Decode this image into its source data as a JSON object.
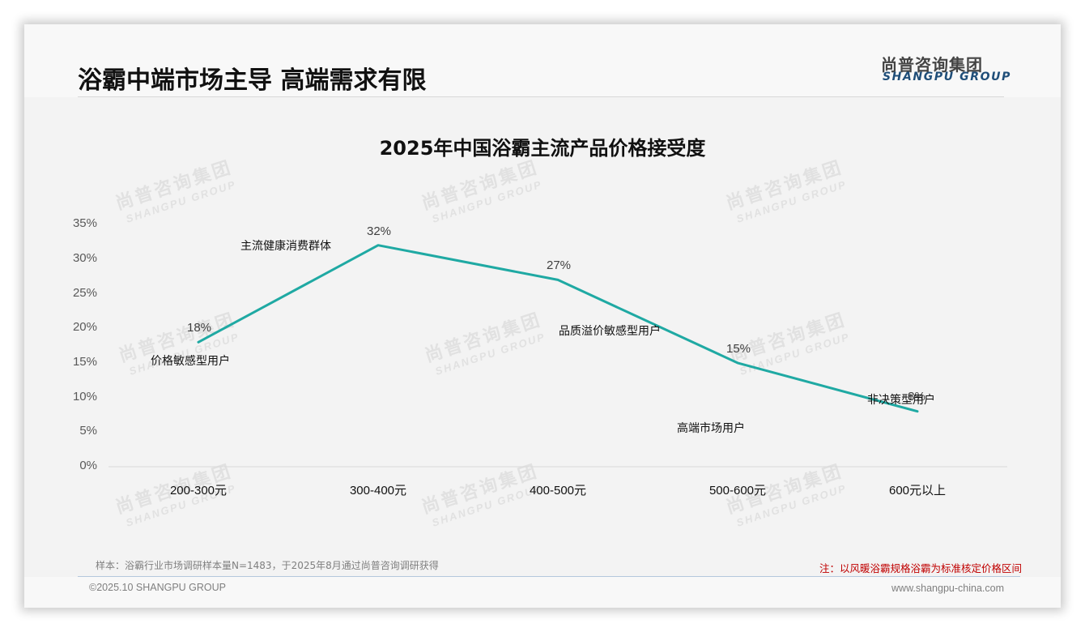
{
  "header": {
    "title": "浴霸中端市场主导 高端需求有限",
    "logo_cn": "尚普咨询集团",
    "logo_en": "SHANGPU GROUP"
  },
  "watermark": {
    "cn": "尚普咨询集团",
    "en": "SHANGPU GROUP"
  },
  "chart_data": {
    "type": "line",
    "title": "2025年中国浴霸主流产品价格接受度",
    "xlabel": "",
    "ylabel": "",
    "categories": [
      "200-300元",
      "300-400元",
      "400-500元",
      "500-600元",
      "600元以上"
    ],
    "series": [
      {
        "name": "价格接受度",
        "values": [
          18,
          32,
          27,
          15,
          8
        ],
        "color": "#1fa9a3"
      }
    ],
    "data_labels": [
      "18%",
      "32%",
      "27%",
      "15%",
      "8%"
    ],
    "annotations": [
      "价格敏感型用户",
      "主流健康消费群体",
      "品质溢价敏感型用户",
      "高端市场用户",
      "非决策型用户"
    ],
    "y_ticks": [
      "0%",
      "5%",
      "10%",
      "15%",
      "20%",
      "25%",
      "30%",
      "35%"
    ],
    "ylim": [
      0,
      35
    ],
    "grid": false,
    "legend": "none"
  },
  "footer": {
    "sample_note": "样本：浴霸行业市场调研样本量N=1483，于2025年8月通过尚普咨询调研获得",
    "red_note": "注：以风暖浴霸规格浴霸为标准核定价格区间",
    "copyright": "©2025.10 SHANGPU GROUP",
    "website": "www.shangpu-china.com"
  }
}
